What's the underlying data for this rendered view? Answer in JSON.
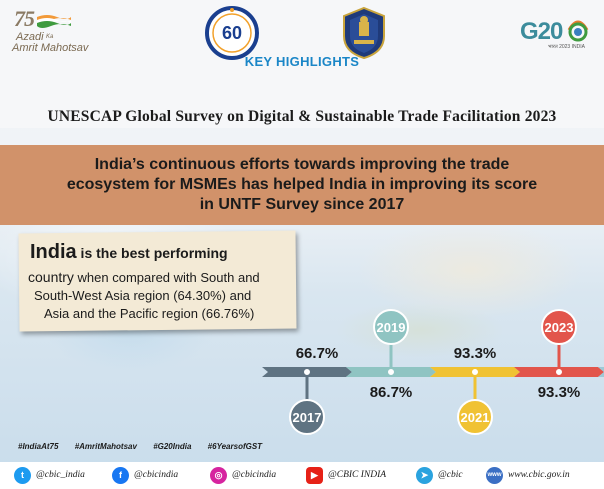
{
  "header": {
    "azadi_number": "75",
    "azadi_line1": "Azadi",
    "azadi_ka": "Ka",
    "azadi_line2": "Amrit Mahotsav",
    "emblem_60_number": "60",
    "g20_text": "G20",
    "g20_sub": "भारत 2023 INDIA",
    "key_highlights": "KEY HIGHLIGHTS",
    "survey_title": "UNESCAP Global Survey on Digital & Sustainable Trade Facilitation 2023"
  },
  "banner": {
    "line1": "India’s continuous efforts towards improving the trade",
    "line2": "ecosystem for MSMEs  has helped India in improving its score",
    "line3": "in UNTF Survey since 2017"
  },
  "note": {
    "india": "India",
    "best": " is the best performing",
    "country": "country",
    "line2_rest": " when compared with South and",
    "line3": "South-West Asia region (64.30%) and",
    "line4": "Asia and the Pacific region (66.76%)"
  },
  "chart_data": {
    "type": "line",
    "title": "",
    "x": [
      "2017",
      "2019",
      "2021",
      "2023"
    ],
    "series": [
      {
        "values": [
          66.7,
          86.7,
          93.3,
          93.3
        ]
      }
    ],
    "labels": [
      "66.7%",
      "86.7%",
      "93.3%",
      "93.3%"
    ],
    "colors": [
      "#5f7382",
      "#8fc4c2",
      "#f0c233",
      "#e2554b"
    ]
  },
  "hashtags": [
    "#IndiaAt75",
    "#AmritMahotsav",
    "#G20India",
    "#6YearsofGST"
  ],
  "social": [
    {
      "icon": "twitter-icon",
      "label": "@cbic_india",
      "color": "#1d9bf0",
      "glyph": "t"
    },
    {
      "icon": "facebook-icon",
      "label": "@cbicindia",
      "color": "#1877f2",
      "glyph": "f"
    },
    {
      "icon": "instagram-icon",
      "label": "@cbicindia",
      "color": "#d6249f",
      "glyph": "◎"
    },
    {
      "icon": "youtube-icon",
      "label": "@CBIC INDIA",
      "color": "#e62117",
      "glyph": "▶"
    },
    {
      "icon": "telegram-icon",
      "label": "@cbic",
      "color": "#2aa3df",
      "glyph": "➤"
    },
    {
      "icon": "web-icon",
      "label": "www.cbic.gov.in",
      "color": "#3b6fc4",
      "glyph": "www"
    }
  ]
}
